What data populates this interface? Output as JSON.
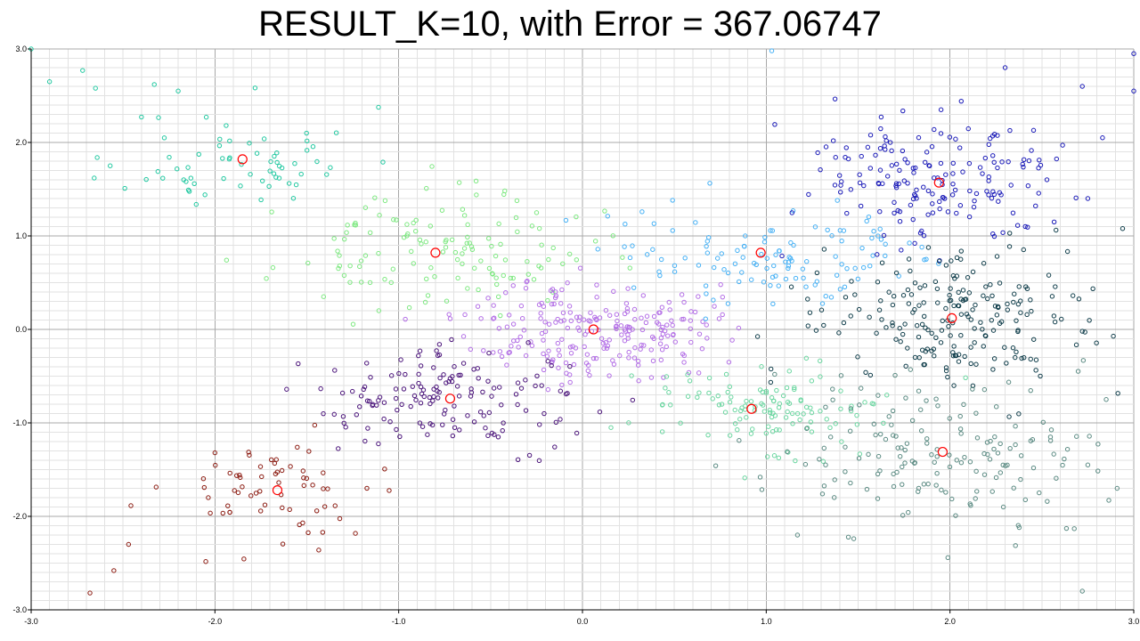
{
  "chart_data": {
    "type": "scatter",
    "title": "RESULT_K=10, with Error = 367.06747",
    "xlabel": "",
    "ylabel": "",
    "xlim": [
      -3.0,
      3.0
    ],
    "ylim": [
      -3.0,
      3.0
    ],
    "x_ticks": [
      "-3.0",
      "-2.0",
      "-1.0",
      "0.0",
      "1.0",
      "2.0",
      "3.0"
    ],
    "y_ticks": [
      "3.0",
      "2.0",
      "1.0",
      "0.0",
      "-1.0",
      "-2.0",
      "-3.0"
    ],
    "grid": true,
    "centroid_color": "#ff0000",
    "clusters": [
      {
        "color": "#20c8a0",
        "center": [
          -1.85,
          1.82
        ],
        "spread": [
          0.32,
          0.28
        ],
        "count": 65,
        "seed": 11,
        "extra": [
          [
            -3.0,
            3.0
          ],
          [
            -2.9,
            2.65
          ],
          [
            -2.72,
            2.77
          ],
          [
            -2.65,
            2.58
          ],
          [
            -2.33,
            2.62
          ],
          [
            -2.2,
            2.55
          ],
          [
            -2.57,
            1.75
          ]
        ]
      },
      {
        "color": "#7de880",
        "center": [
          -0.8,
          0.82
        ],
        "spread": [
          0.42,
          0.3
        ],
        "count": 130,
        "seed": 23,
        "extra": []
      },
      {
        "color": "#b36ee6",
        "center": [
          0.06,
          0.0
        ],
        "spread": [
          0.33,
          0.27
        ],
        "count": 230,
        "seed": 37,
        "extra": []
      },
      {
        "color": "#4a137a",
        "center": [
          -0.72,
          -0.74
        ],
        "spread": [
          0.38,
          0.26
        ],
        "count": 150,
        "seed": 41,
        "extra": []
      },
      {
        "color": "#8b1a10",
        "center": [
          -1.66,
          -1.72
        ],
        "spread": [
          0.3,
          0.32
        ],
        "count": 65,
        "seed": 53,
        "extra": [
          [
            -2.68,
            -2.82
          ],
          [
            -2.55,
            -2.58
          ],
          [
            -2.47,
            -2.3
          ],
          [
            -2.0,
            -1.32
          ]
        ]
      },
      {
        "color": "#44b0f5",
        "center": [
          0.97,
          0.82
        ],
        "spread": [
          0.48,
          0.3
        ],
        "count": 120,
        "seed": 61,
        "extra": [
          [
            1.03,
            2.98
          ]
        ]
      },
      {
        "color": "#1a1ab8",
        "center": [
          1.94,
          1.57
        ],
        "spread": [
          0.4,
          0.38
        ],
        "count": 175,
        "seed": 71,
        "extra": [
          [
            2.3,
            2.8
          ],
          [
            2.72,
            2.6
          ],
          [
            3.0,
            2.95
          ],
          [
            3.0,
            2.55
          ],
          [
            2.83,
            2.05
          ],
          [
            2.75,
            1.4
          ]
        ]
      },
      {
        "color": "#0f3d4a",
        "center": [
          2.01,
          0.12
        ],
        "spread": [
          0.38,
          0.38
        ],
        "count": 210,
        "seed": 83,
        "extra": [
          [
            2.72,
            -0.02
          ]
        ]
      },
      {
        "color": "#6ad6a0",
        "center": [
          0.92,
          -0.85
        ],
        "spread": [
          0.38,
          0.25
        ],
        "count": 120,
        "seed": 97,
        "extra": []
      },
      {
        "color": "#5a8a82",
        "center": [
          1.96,
          -1.31
        ],
        "spread": [
          0.45,
          0.42
        ],
        "count": 165,
        "seed": 101,
        "extra": [
          [
            2.72,
            -2.8
          ],
          [
            2.75,
            -1.45
          ],
          [
            2.85,
            -0.75
          ],
          [
            1.17,
            -2.2
          ]
        ]
      }
    ]
  }
}
